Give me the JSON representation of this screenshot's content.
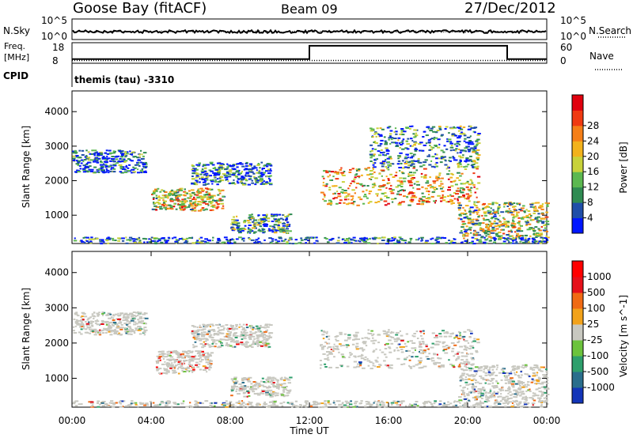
{
  "header": {
    "title_left": "Goose Bay (fitACF)",
    "title_center": "Beam 09",
    "title_right": "27/Dec/2012"
  },
  "noise_panel": {
    "left_label": "N.Sky",
    "right_label": "N.Search",
    "ticks_left": [
      "10^5",
      "10^0"
    ],
    "ticks_right": [
      "10^5",
      "10^0"
    ]
  },
  "freq_panel": {
    "left_label_line1": "Freq.",
    "left_label_line2": "[MHz]",
    "right_label": "Nave",
    "ticks_left": [
      "18",
      "8"
    ],
    "ticks_right": [
      "60",
      "0"
    ],
    "freq_steps": [
      {
        "from": "00:00",
        "to": "12:00",
        "value": 10
      },
      {
        "from": "12:00",
        "to": "22:00",
        "value": 16.5
      },
      {
        "from": "22:00",
        "to": "24:00",
        "value": 10
      }
    ],
    "nave_level": 8
  },
  "cpid": {
    "label": "CPID",
    "value": "themis (tau) -3310"
  },
  "chart_data": [
    {
      "type": "heatmap",
      "title": "Power",
      "xlabel": "Time UT",
      "ylabel": "Slant Range [km]",
      "x_ticks": [
        "00:00",
        "04:00",
        "08:00",
        "12:00",
        "16:00",
        "20:00",
        "00:00"
      ],
      "y_ticks": [
        "1000",
        "2000",
        "3000",
        "4000"
      ],
      "ylim": [
        180,
        4600
      ],
      "colorbar": {
        "label": "Power [dB]",
        "ticks": [
          "4",
          "8",
          "12",
          "16",
          "20",
          "24",
          "28"
        ],
        "colors": [
          "#0016ff",
          "#1f4ea8",
          "#2f8b52",
          "#5cb850",
          "#c8d23a",
          "#f2b21c",
          "#f57f18",
          "#f03a12",
          "#e0000e"
        ]
      },
      "features": [
        {
          "t_start": 0.0,
          "t_end": 3.7,
          "r_start": 2250,
          "r_end": 2900,
          "level": 0.15
        },
        {
          "t_start": 4.0,
          "t_end": 7.6,
          "r_start": 1150,
          "r_end": 1800,
          "level": 0.55
        },
        {
          "t_start": 6.0,
          "t_end": 10.0,
          "r_start": 1900,
          "r_end": 2550,
          "level": 0.2
        },
        {
          "t_start": 8.0,
          "t_end": 11.0,
          "r_start": 500,
          "r_end": 1050,
          "level": 0.3
        },
        {
          "t_start": 12.5,
          "t_end": 20.5,
          "r_start": 1300,
          "r_end": 2400,
          "level": 0.6
        },
        {
          "t_start": 15.0,
          "t_end": 20.5,
          "r_start": 2400,
          "r_end": 3600,
          "level": 0.25
        },
        {
          "t_start": 19.5,
          "t_end": 24.0,
          "r_start": 350,
          "r_end": 1400,
          "level": 0.45
        },
        {
          "t_start": 0.0,
          "t_end": 24.0,
          "r_start": 200,
          "r_end": 380,
          "level": 0.2
        }
      ]
    },
    {
      "type": "heatmap",
      "title": "Velocity",
      "xlabel": "Time UT",
      "ylabel": "Slant Range [km]",
      "x_ticks": [
        "00:00",
        "04:00",
        "08:00",
        "12:00",
        "16:00",
        "20:00",
        "00:00"
      ],
      "y_ticks": [
        "1000",
        "2000",
        "3000",
        "4000"
      ],
      "ylim": [
        180,
        4600
      ],
      "colorbar": {
        "label": "Velocity [m s^-1]",
        "ticks": [
          "1000",
          "500",
          "100",
          "25",
          "-25",
          "-100",
          "-500",
          "-1000"
        ],
        "colors": [
          "#1335b8",
          "#2a6e8c",
          "#2e9f6c",
          "#6cc33c",
          "#c8c8c0",
          "#f2a21a",
          "#f06a14",
          "#e6101a",
          "#ff0000"
        ]
      },
      "features": [
        {
          "t_start": 0.0,
          "t_end": 3.7,
          "r_start": 2250,
          "r_end": 2900,
          "level": 0.5
        },
        {
          "t_start": 4.2,
          "t_end": 7.0,
          "r_start": 1150,
          "r_end": 1800,
          "level": 0.8
        },
        {
          "t_start": 6.0,
          "t_end": 10.0,
          "r_start": 1900,
          "r_end": 2550,
          "level": 0.5
        },
        {
          "t_start": 8.0,
          "t_end": 11.0,
          "r_start": 500,
          "r_end": 1050,
          "level": 0.5
        },
        {
          "t_start": 12.5,
          "t_end": 20.5,
          "r_start": 1300,
          "r_end": 2400,
          "level": 0.5
        },
        {
          "t_start": 19.5,
          "t_end": 24.0,
          "r_start": 350,
          "r_end": 1400,
          "level": 0.4
        },
        {
          "t_start": 0.0,
          "t_end": 24.0,
          "r_start": 200,
          "r_end": 380,
          "level": 0.45
        }
      ]
    }
  ]
}
